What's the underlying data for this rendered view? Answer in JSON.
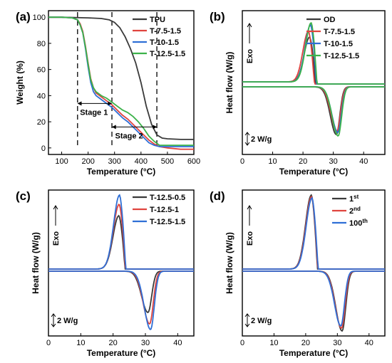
{
  "colors": {
    "black": "#3a3a3a",
    "red": "#e0443e",
    "blue": "#2f6fd6",
    "green": "#3cb24a"
  },
  "chart_data": [
    {
      "panel": "(a)",
      "type": "line",
      "xlabel": "Temperature (°C)",
      "ylabel": "Weight (%)",
      "xlim": [
        50,
        600
      ],
      "ylim": [
        -5,
        105
      ],
      "xticks": [
        100,
        200,
        300,
        400,
        500,
        600
      ],
      "yticks": [
        0,
        20,
        40,
        60,
        80,
        100
      ],
      "legend_position": "top-right",
      "annotations": {
        "stage1": "Stage 1",
        "stage2": "Stage 2"
      },
      "stage_lines": [
        160,
        290,
        460
      ],
      "series": [
        {
          "name": "TPU",
          "color": "black",
          "x": [
            50,
            100,
            200,
            250,
            280,
            300,
            320,
            340,
            360,
            380,
            400,
            420,
            440,
            460,
            480,
            500,
            550,
            600
          ],
          "y": [
            100,
            100,
            99.5,
            99,
            98,
            96,
            92,
            85,
            76,
            65,
            50,
            32,
            18,
            10,
            7.5,
            7,
            6.5,
            6.5
          ]
        },
        {
          "name": "T-7.5-1.5",
          "color": "red",
          "x": [
            50,
            100,
            140,
            160,
            170,
            180,
            190,
            200,
            210,
            220,
            230,
            250,
            270,
            290,
            310,
            330,
            350,
            370,
            390,
            410,
            430,
            450,
            470,
            500,
            550,
            600
          ],
          "y": [
            100,
            100,
            99.5,
            98,
            95,
            89,
            78,
            65,
            53,
            46,
            42,
            39,
            36,
            33,
            29,
            25,
            22,
            18,
            14,
            10,
            6,
            3,
            1,
            0,
            -1,
            -1
          ]
        },
        {
          "name": "T-10-1.5",
          "color": "blue",
          "x": [
            50,
            100,
            140,
            160,
            170,
            180,
            190,
            200,
            210,
            220,
            230,
            250,
            270,
            290,
            310,
            330,
            350,
            370,
            390,
            410,
            430,
            450,
            470,
            500,
            550,
            600
          ],
          "y": [
            100,
            100,
            99.5,
            98,
            94,
            88,
            76,
            62,
            50,
            43,
            40,
            37,
            34,
            31,
            27,
            23,
            20,
            16,
            12,
            8,
            4,
            2,
            1,
            1,
            1,
            1
          ]
        },
        {
          "name": "T-12.5-1.5",
          "color": "green",
          "x": [
            50,
            100,
            140,
            160,
            170,
            180,
            190,
            200,
            210,
            220,
            230,
            250,
            270,
            290,
            310,
            330,
            350,
            370,
            390,
            410,
            430,
            450,
            470,
            500,
            550,
            600
          ],
          "y": [
            100,
            100,
            99.5,
            98,
            94,
            88,
            77,
            64,
            52,
            46,
            43,
            40,
            38,
            35,
            32,
            29,
            27,
            24,
            20,
            15,
            9,
            5,
            2,
            2,
            2,
            2
          ]
        }
      ]
    },
    {
      "panel": "(b)",
      "type": "line",
      "xlabel": "Temperature (°C)",
      "ylabel": "Heat flow (W/g)",
      "xlim": [
        0,
        47
      ],
      "xticks": [
        0,
        10,
        20,
        30,
        40
      ],
      "exo_label": "Exo",
      "scale_label": "2 W/g",
      "legend_position": "top-right",
      "series": [
        {
          "name": "OD",
          "color": "black",
          "peak_cool": 22.2,
          "peak_heat": 31.0,
          "h_cool": 63,
          "h_heat": 67
        },
        {
          "name": "T-7.5-1.5",
          "color": "red",
          "peak_cool": 21.8,
          "peak_heat": 31.2,
          "h_cool": 71,
          "h_heat": 62
        },
        {
          "name": "T-10-1.5",
          "color": "blue",
          "peak_cool": 22.5,
          "peak_heat": 31.5,
          "h_cool": 80,
          "h_heat": 64
        },
        {
          "name": "T-12.5-1.5",
          "color": "green",
          "peak_cool": 22.7,
          "peak_heat": 31.6,
          "h_cool": 83,
          "h_heat": 69
        }
      ]
    },
    {
      "panel": "(c)",
      "type": "line",
      "xlabel": "Temperature (°C)",
      "ylabel": "Heat flow (W/g)",
      "xlim": [
        0,
        45
      ],
      "xticks": [
        0,
        10,
        20,
        30,
        40
      ],
      "exo_label": "Exo",
      "scale_label": "2 W/g",
      "legend_position": "top-right",
      "series": [
        {
          "name": "T-12.5-0.5",
          "color": "black",
          "peak_cool": 21.8,
          "peak_heat": 30.8,
          "h_cool": 75,
          "h_heat": 58
        },
        {
          "name": "T-12.5-1",
          "color": "red",
          "peak_cool": 21.9,
          "peak_heat": 31.3,
          "h_cool": 91,
          "h_heat": 74
        },
        {
          "name": "T-12.5-1.5",
          "color": "blue",
          "peak_cool": 22.0,
          "peak_heat": 31.6,
          "h_cool": 104,
          "h_heat": 82
        }
      ]
    },
    {
      "panel": "(d)",
      "type": "line",
      "xlabel": "Temperature (°C)",
      "ylabel": "Heat flow (W/g)",
      "xlim": [
        0,
        45
      ],
      "xticks": [
        0,
        10,
        20,
        30,
        40
      ],
      "exo_label": "Exo",
      "scale_label": "2 W/g",
      "legend_position": "top-right",
      "series": [
        {
          "name": "1",
          "sup": "st",
          "color": "black",
          "peak_cool": 21.8,
          "peak_heat": 31.5,
          "h_cool": 104,
          "h_heat": 84
        },
        {
          "name": "2",
          "sup": "nd",
          "color": "red",
          "peak_cool": 21.9,
          "peak_heat": 31.3,
          "h_cool": 102,
          "h_heat": 80
        },
        {
          "name": "100",
          "sup": "th",
          "color": "blue",
          "peak_cool": 22.0,
          "peak_heat": 31.1,
          "h_cool": 100,
          "h_heat": 77
        }
      ]
    }
  ]
}
